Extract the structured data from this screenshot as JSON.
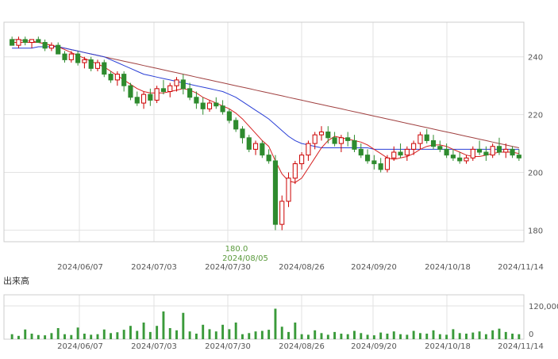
{
  "volume_title": "出来高",
  "chart_data": [
    {
      "type": "candlestick",
      "title": "",
      "ylim": [
        176,
        252
      ],
      "y_ticks": [
        180,
        200,
        220,
        240
      ],
      "x_tick_labels": [
        "2024/06/07",
        "2024/07/03",
        "2024/07/30",
        "2024/08/26",
        "2024/09/20",
        "2024/10/18",
        "2024/11/14"
      ],
      "grid": true,
      "annotation": {
        "value": "180.0",
        "date": "2024/08/05",
        "color": "#5a9a3c"
      },
      "colors": {
        "up": "#cc0000",
        "down": "#2e8b2e",
        "ma_short": "#d62020",
        "ma_mid": "#2a3fd6",
        "ma_long": "#a04040"
      },
      "candles": [
        [
          246,
          247,
          244,
          244
        ],
        [
          244,
          247,
          243,
          246
        ],
        [
          246,
          247,
          244,
          245
        ],
        [
          245,
          246,
          243,
          246
        ],
        [
          246,
          247,
          245,
          245
        ],
        [
          245,
          246,
          242,
          243
        ],
        [
          243,
          245,
          242,
          244
        ],
        [
          244,
          245,
          241,
          241
        ],
        [
          241,
          242,
          238,
          239
        ],
        [
          239,
          242,
          238,
          241
        ],
        [
          241,
          242,
          237,
          238
        ],
        [
          238,
          240,
          236,
          239
        ],
        [
          239,
          240,
          235,
          236
        ],
        [
          236,
          239,
          235,
          238
        ],
        [
          238,
          239,
          233,
          234
        ],
        [
          234,
          235,
          231,
          232
        ],
        [
          232,
          235,
          230,
          234
        ],
        [
          234,
          235,
          228,
          230
        ],
        [
          230,
          231,
          225,
          226
        ],
        [
          226,
          228,
          223,
          224
        ],
        [
          224,
          228,
          222,
          227
        ],
        [
          227,
          229,
          223,
          225
        ],
        [
          225,
          230,
          224,
          229
        ],
        [
          229,
          232,
          227,
          228
        ],
        [
          228,
          231,
          226,
          230
        ],
        [
          230,
          233,
          228,
          232
        ],
        [
          232,
          234,
          227,
          229
        ],
        [
          229,
          231,
          225,
          226
        ],
        [
          226,
          228,
          222,
          224
        ],
        [
          224,
          226,
          220,
          222
        ],
        [
          222,
          225,
          221,
          224
        ],
        [
          224,
          226,
          222,
          223
        ],
        [
          223,
          225,
          220,
          221
        ],
        [
          221,
          222,
          217,
          218
        ],
        [
          218,
          219,
          214,
          215
        ],
        [
          215,
          216,
          210,
          212
        ],
        [
          212,
          213,
          207,
          208
        ],
        [
          208,
          211,
          206,
          210
        ],
        [
          210,
          211,
          205,
          206
        ],
        [
          206,
          208,
          203,
          204
        ],
        [
          204,
          206,
          180,
          182
        ],
        [
          182,
          192,
          180,
          190
        ],
        [
          190,
          200,
          188,
          198
        ],
        [
          198,
          204,
          196,
          203
        ],
        [
          203,
          207,
          201,
          206
        ],
        [
          206,
          211,
          204,
          210
        ],
        [
          210,
          214,
          208,
          213
        ],
        [
          213,
          216,
          211,
          214
        ],
        [
          214,
          216,
          210,
          212
        ],
        [
          212,
          214,
          209,
          210
        ],
        [
          210,
          213,
          207,
          212
        ],
        [
          212,
          214,
          209,
          211
        ],
        [
          211,
          213,
          207,
          208
        ],
        [
          208,
          210,
          205,
          206
        ],
        [
          206,
          208,
          203,
          204
        ],
        [
          204,
          206,
          201,
          203
        ],
        [
          203,
          205,
          200,
          201
        ],
        [
          201,
          206,
          200,
          205
        ],
        [
          205,
          209,
          204,
          207
        ],
        [
          207,
          210,
          205,
          206
        ],
        [
          206,
          209,
          204,
          208
        ],
        [
          208,
          211,
          206,
          210
        ],
        [
          210,
          214,
          208,
          213
        ],
        [
          213,
          215,
          210,
          211
        ],
        [
          211,
          213,
          208,
          209
        ],
        [
          209,
          211,
          207,
          208
        ],
        [
          208,
          210,
          205,
          206
        ],
        [
          206,
          208,
          204,
          205
        ],
        [
          205,
          207,
          203,
          204
        ],
        [
          204,
          206,
          203,
          205
        ],
        [
          205,
          209,
          204,
          208
        ],
        [
          208,
          211,
          206,
          207
        ],
        [
          207,
          209,
          204,
          206
        ],
        [
          206,
          210,
          205,
          209
        ],
        [
          209,
          212,
          206,
          207
        ],
        [
          207,
          210,
          205,
          208
        ],
        [
          208,
          209,
          205,
          206
        ],
        [
          206,
          208,
          204,
          205
        ]
      ],
      "ma_short": [
        245,
        245,
        245,
        245,
        245,
        244.5,
        244,
        243.5,
        242.5,
        241.5,
        240.5,
        239.5,
        238.5,
        237.5,
        236.5,
        235,
        233.5,
        232,
        230.5,
        229,
        228,
        227.5,
        227.5,
        227.5,
        228,
        228.5,
        229,
        228.5,
        227.5,
        226,
        225,
        224,
        223,
        222,
        220.5,
        218.5,
        216,
        213.5,
        211,
        209,
        204,
        199.5,
        197,
        196.5,
        198,
        201.5,
        205,
        208.5,
        211,
        212.5,
        212,
        211.5,
        211,
        210.5,
        209.5,
        208,
        206.5,
        205,
        204.5,
        205,
        205.5,
        206.5,
        208,
        209,
        209.5,
        209.5,
        209,
        208,
        207,
        206,
        205.5,
        205.5,
        206,
        206.5,
        207,
        207,
        207,
        206.5
      ],
      "ma_mid": [
        243,
        243,
        243,
        243,
        243.5,
        243.5,
        243.5,
        243.5,
        243,
        242.5,
        242,
        241.5,
        241,
        240.5,
        240,
        239,
        238,
        237,
        236,
        235,
        234,
        233.5,
        233,
        232.5,
        232,
        231.5,
        231,
        230.5,
        230,
        229.5,
        229,
        228.5,
        228,
        227,
        226,
        224.5,
        223,
        221.5,
        220,
        218.5,
        216.5,
        214.5,
        212.5,
        211,
        210,
        209.5,
        209,
        208.5,
        208.5,
        208.5,
        208.5,
        208.5,
        208.5,
        208.5,
        208.5,
        208,
        208,
        208,
        208,
        208,
        208,
        208,
        208,
        208,
        208,
        208,
        208,
        208,
        208,
        208,
        208,
        208,
        208,
        208,
        208,
        208,
        208,
        208
      ],
      "ma_long": [
        246,
        246,
        245.5,
        245.5,
        245,
        244.5,
        244,
        243.5,
        243,
        242.5,
        242,
        241.5,
        241,
        240.5,
        240,
        239.5,
        239,
        238.5,
        238,
        237.5,
        237,
        236.5,
        236,
        235.5,
        235,
        234.5,
        234,
        233.5,
        233,
        232.5,
        232,
        231.5,
        231,
        230.5,
        230,
        229.5,
        229,
        228.5,
        228,
        227.5,
        227,
        226.5,
        226,
        225.5,
        225,
        224.5,
        224,
        223.5,
        223,
        222.5,
        222,
        221.5,
        221,
        220.5,
        220,
        219.5,
        219,
        218.5,
        218,
        217.5,
        217,
        216.5,
        216,
        215.5,
        215,
        214.5,
        214,
        213.5,
        213,
        212.5,
        212,
        211.5,
        211,
        210.5,
        210,
        209.5,
        209,
        208.5
      ]
    },
    {
      "type": "bar",
      "title": "",
      "ylim": [
        0,
        160000
      ],
      "y_ticks": [
        0,
        120000
      ],
      "y_tick_labels": [
        "0",
        "120,000"
      ],
      "x_tick_labels": [
        "2024/06/07",
        "2024/07/03",
        "2024/07/30",
        "2024/08/26",
        "2024/09/20",
        "2024/10/18",
        "2024/11/14"
      ],
      "color": "#3a9a3a",
      "values": [
        18000,
        12000,
        35000,
        20000,
        15000,
        14000,
        22000,
        40000,
        18000,
        15000,
        42000,
        20000,
        16000,
        18000,
        35000,
        22000,
        25000,
        34000,
        48000,
        30000,
        60000,
        26000,
        48000,
        100000,
        40000,
        32000,
        95000,
        28000,
        20000,
        52000,
        36000,
        28000,
        52000,
        36000,
        60000,
        18000,
        22000,
        28000,
        30000,
        34000,
        110000,
        45000,
        26000,
        60000,
        18000,
        16000,
        32000,
        22000,
        16000,
        26000,
        20000,
        18000,
        30000,
        22000,
        16000,
        14000,
        24000,
        20000,
        28000,
        18000,
        16000,
        30000,
        22000,
        20000,
        32000,
        18000,
        16000,
        36000,
        22000,
        20000,
        24000,
        28000,
        18000,
        32000,
        38000,
        26000,
        20000,
        18000
      ]
    }
  ]
}
